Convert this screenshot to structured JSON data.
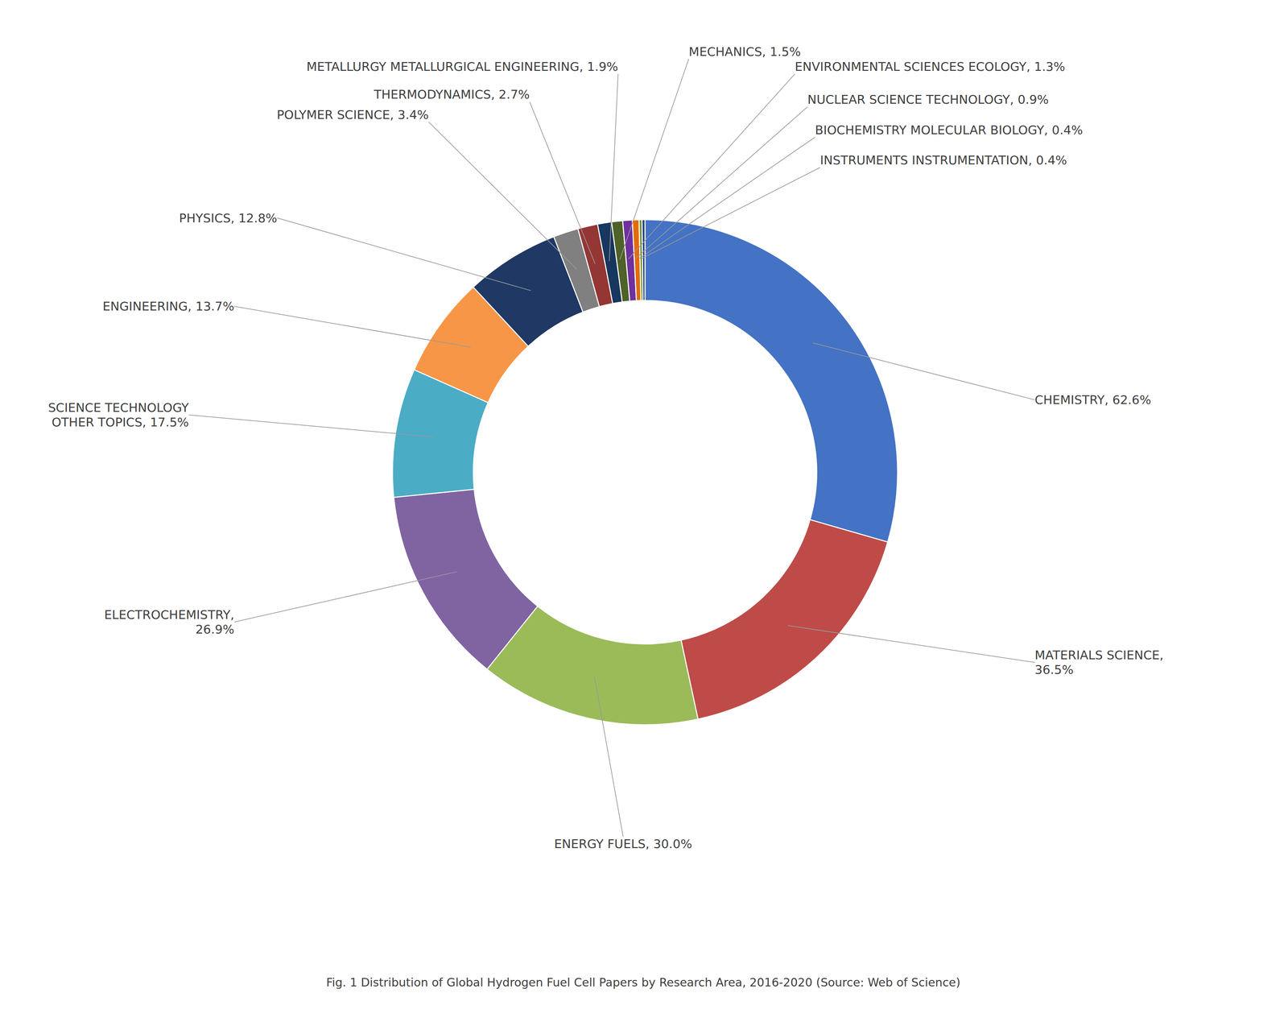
{
  "chart_data": {
    "type": "pie",
    "title": "Fig. 1 Distribution of Global Hydrogen Fuel Cell Papers by Research Area, 2016-2020 (Source: Web of Science)",
    "categories": [
      "CHEMISTRY",
      "MATERIALS SCIENCE",
      "ENERGY FUELS",
      "ELECTROCHEMISTRY",
      "SCIENCE TECHNOLOGY OTHER TOPICS",
      "ENGINEERING",
      "PHYSICS",
      "POLYMER SCIENCE",
      "THERMODYNAMICS",
      "METALLURGY METALLURGICAL ENGINEERING",
      "MECHANICS",
      "ENVIRONMENTAL SCIENCES ECOLOGY",
      "NUCLEAR SCIENCE TECHNOLOGY",
      "BIOCHEMISTRY MOLECULAR BIOLOGY",
      "INSTRUMENTS INSTRUMENTATION"
    ],
    "values": [
      62.6,
      36.5,
      30.0,
      26.9,
      17.5,
      13.7,
      12.8,
      3.4,
      2.7,
      1.9,
      1.5,
      1.3,
      0.9,
      0.4,
      0.4
    ],
    "value_labels": [
      "CHEMISTRY, 62.6%",
      "MATERIALS SCIENCE,\n36.5%",
      "ENERGY FUELS, 30.0%",
      "ELECTROCHEMISTRY,\n26.9%",
      "SCIENCE TECHNOLOGY\nOTHER TOPICS, 17.5%",
      "ENGINEERING, 13.7%",
      "PHYSICS, 12.8%",
      "POLYMER SCIENCE, 3.4%",
      "THERMODYNAMICS, 2.7%",
      "METALLURGY METALLURGICAL ENGINEERING, 1.9%",
      "MECHANICS, 1.5%",
      "ENVIRONMENTAL SCIENCES ECOLOGY, 1.3%",
      "NUCLEAR SCIENCE TECHNOLOGY, 0.9%",
      "BIOCHEMISTRY MOLECULAR BIOLOGY, 0.4%",
      "INSTRUMENTS INSTRUMENTATION, 0.4%"
    ],
    "colors": [
      "#4472C4",
      "#BE4B48",
      "#9BBB59",
      "#8064A2",
      "#4BACC6",
      "#F79646",
      "#1F3864",
      "#808080",
      "#943634",
      "#17375E",
      "#4F6228",
      "#7030A0",
      "#E36C09",
      "#76923C",
      "#244185"
    ],
    "data_labels": true
  }
}
